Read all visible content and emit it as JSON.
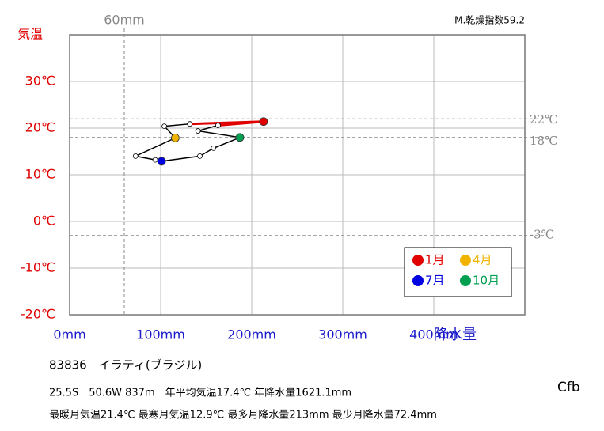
{
  "chart_data": {
    "type": "hythergraph",
    "ylabel": "気温",
    "xlabel": "降水量",
    "dryness_index": "M.乾燥指数59.2",
    "x": [
      213,
      132,
      104,
      116,
      72.4,
      94,
      101,
      143,
      158,
      187,
      141,
      163
    ],
    "values": [
      21.4,
      20.9,
      20.4,
      17.9,
      14.0,
      13.2,
      12.9,
      14.0,
      15.7,
      18.0,
      19.4,
      20.6
    ],
    "line_color": "#000000",
    "highlights": [
      {
        "name": "1月",
        "color": "#e00000"
      },
      {
        "name": "4月",
        "color": "#f0b400"
      },
      {
        "name": "7月",
        "color": "#0000e0"
      },
      {
        "name": "10月",
        "color": "#00a050"
      }
    ],
    "xlim": [
      0,
      500
    ],
    "ylim": [
      -20,
      40
    ],
    "xticks": [
      {
        "value": 0,
        "label": "0mm"
      },
      {
        "value": 100,
        "label": "100mm"
      },
      {
        "value": 200,
        "label": "200mm"
      },
      {
        "value": 300,
        "label": "300mm"
      },
      {
        "value": 400,
        "label": "400mm"
      }
    ],
    "yticks": [
      {
        "value": -20,
        "label": "-20℃"
      },
      {
        "value": -10,
        "label": "-10℃"
      },
      {
        "value": 0,
        "label": "0℃"
      },
      {
        "value": 10,
        "label": "10℃"
      },
      {
        "value": 20,
        "label": "20℃"
      },
      {
        "value": 30,
        "label": "30℃"
      }
    ],
    "grid": true,
    "hlines": [
      {
        "value": 22,
        "label": "22℃"
      },
      {
        "value": 18,
        "label": "18℃"
      },
      {
        "value": -3,
        "label": "-3℃"
      }
    ],
    "vlines": [
      {
        "value": 60,
        "label": "60mm"
      }
    ],
    "station": "83836　イラティ(ブラジル)",
    "info": [
      "25.5S　50.6W 837m　年平均気温17.4℃ 年降水量1621.1mm",
      "最暖月気温21.4℃ 最寒月気温12.9℃ 最多月降水量213mm 最少月降水量72.4mm"
    ],
    "climate": "Cfb"
  }
}
